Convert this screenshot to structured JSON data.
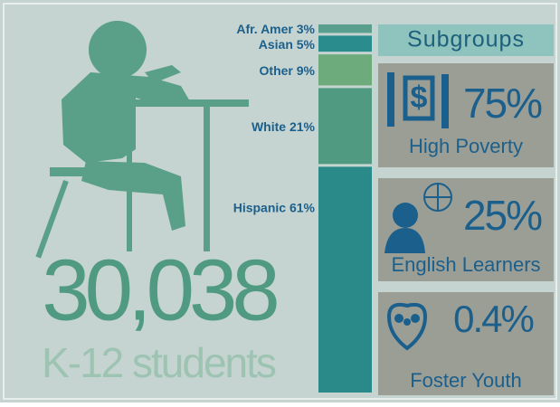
{
  "chart_data": {
    "type": "stacked-bar",
    "series": [
      {
        "name": "Afr. Amer",
        "color": "#5a9f8e",
        "values": [
          3
        ],
        "value_labels": [
          "3%"
        ]
      },
      {
        "name": "Asian",
        "color": "#2a8c8c",
        "values": [
          5
        ],
        "value_labels": [
          "5%"
        ]
      },
      {
        "name": "Other",
        "color": "#6dab7c",
        "values": [
          9
        ],
        "value_labels": [
          "9%"
        ]
      },
      {
        "name": "White",
        "color": "#4f9a80",
        "values": [
          21
        ],
        "value_labels": [
          "21%"
        ]
      },
      {
        "name": "Hispanic",
        "color": "#2a8a89",
        "values": [
          61
        ],
        "value_labels": [
          "61%"
        ]
      }
    ]
  },
  "headline": {
    "count": "30,038",
    "caption": "K-12 students"
  },
  "subgroups": {
    "title": "Subgroups",
    "items": [
      {
        "value": "75%",
        "label": "High Poverty"
      },
      {
        "value": "25%",
        "label": "English Learners"
      },
      {
        "value": "0.4%",
        "label": "Foster Youth"
      }
    ]
  }
}
